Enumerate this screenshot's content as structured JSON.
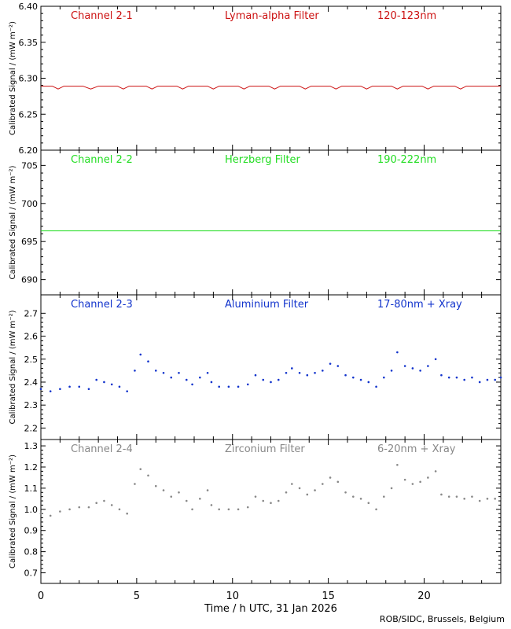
{
  "chart_data": [
    {
      "type": "line",
      "channel_label": "Channel 2-1",
      "filter_label": "Lyman-alpha Filter",
      "band_label": "120-123nm",
      "color": "#cc1111",
      "ylabel": "Calibrated Signal / (mW m⁻²)",
      "ylim": [
        6.2,
        6.4
      ],
      "yticks": [
        6.2,
        6.25,
        6.3,
        6.35,
        6.4
      ],
      "ytick_labels": [
        "6.20",
        "6.25",
        "6.30",
        "6.35",
        "6.40"
      ],
      "series": [
        {
          "x": [
            0,
            0.6,
            0.9,
            1.2,
            2.2,
            2.6,
            3.0,
            4.0,
            4.3,
            4.6,
            5.5,
            5.8,
            6.1,
            7.1,
            7.4,
            7.7,
            8.7,
            9.0,
            9.3,
            10.3,
            10.6,
            10.9,
            11.9,
            12.2,
            12.5,
            13.5,
            13.8,
            14.1,
            15.1,
            15.4,
            15.7,
            16.7,
            17.0,
            17.3,
            18.3,
            18.6,
            18.9,
            19.9,
            20.2,
            20.5,
            21.6,
            21.9,
            22.2,
            23.2,
            23.5,
            24.0
          ],
          "y": [
            6.289,
            6.289,
            6.285,
            6.289,
            6.289,
            6.285,
            6.289,
            6.289,
            6.285,
            6.289,
            6.289,
            6.285,
            6.289,
            6.289,
            6.285,
            6.289,
            6.289,
            6.285,
            6.289,
            6.289,
            6.285,
            6.289,
            6.289,
            6.285,
            6.289,
            6.289,
            6.285,
            6.289,
            6.289,
            6.285,
            6.289,
            6.289,
            6.285,
            6.289,
            6.289,
            6.285,
            6.289,
            6.289,
            6.285,
            6.289,
            6.289,
            6.285,
            6.289,
            6.289,
            6.289,
            6.289
          ]
        }
      ]
    },
    {
      "type": "line",
      "channel_label": "Channel 2-2",
      "filter_label": "Herzberg Filter",
      "band_label": "190-222nm",
      "color": "#22dd22",
      "ylabel": "Calibrated Signal / (mW m⁻²)",
      "ylim": [
        688,
        707
      ],
      "yticks": [
        690,
        695,
        700,
        705
      ],
      "ytick_labels": [
        "690",
        "695",
        "700",
        "705"
      ],
      "series": [
        {
          "x": [
            0,
            24
          ],
          "y": [
            696.4,
            696.4
          ]
        }
      ]
    },
    {
      "type": "scatter",
      "channel_label": "Channel 2-3",
      "filter_label": "Aluminium Filter",
      "band_label": "17-80nm + Xray",
      "color": "#1133cc",
      "ylabel": "Calibrated Signal / (mW m⁻²)",
      "ylim": [
        2.15,
        2.78
      ],
      "yticks": [
        2.2,
        2.3,
        2.4,
        2.5,
        2.6,
        2.7
      ],
      "ytick_labels": [
        "2.2",
        "2.3",
        "2.4",
        "2.5",
        "2.6",
        "2.7"
      ],
      "series": [
        {
          "x": [
            0,
            0.5,
            1.0,
            1.5,
            2.0,
            2.5,
            2.9,
            3.3,
            3.7,
            4.1,
            4.5,
            4.9,
            5.2,
            5.6,
            6.0,
            6.4,
            6.8,
            7.2,
            7.6,
            7.9,
            8.3,
            8.7,
            8.9,
            9.3,
            9.8,
            10.3,
            10.8,
            11.2,
            11.6,
            12.0,
            12.4,
            12.8,
            13.1,
            13.5,
            13.9,
            14.3,
            14.7,
            15.1,
            15.5,
            15.9,
            16.3,
            16.7,
            17.1,
            17.5,
            17.9,
            18.3,
            18.6,
            19.0,
            19.4,
            19.8,
            20.2,
            20.6,
            20.9,
            21.3,
            21.7,
            22.1,
            22.5,
            22.9,
            23.3,
            23.7,
            24.0
          ],
          "y": [
            2.37,
            2.36,
            2.37,
            2.38,
            2.38,
            2.37,
            2.41,
            2.4,
            2.39,
            2.38,
            2.36,
            2.45,
            2.52,
            2.49,
            2.45,
            2.44,
            2.42,
            2.44,
            2.41,
            2.39,
            2.42,
            2.44,
            2.4,
            2.38,
            2.38,
            2.38,
            2.39,
            2.43,
            2.41,
            2.4,
            2.41,
            2.44,
            2.46,
            2.44,
            2.43,
            2.44,
            2.45,
            2.48,
            2.47,
            2.43,
            2.42,
            2.41,
            2.4,
            2.38,
            2.42,
            2.45,
            2.53,
            2.47,
            2.46,
            2.45,
            2.47,
            2.5,
            2.43,
            2.42,
            2.42,
            2.41,
            2.42,
            2.4,
            2.41,
            2.41,
            2.42
          ]
        }
      ]
    },
    {
      "type": "scatter",
      "channel_label": "Channel 2-4",
      "filter_label": "Zirconium Filter",
      "band_label": "6-20nm + Xray",
      "color": "#888888",
      "ylabel": "Calibrated Signal / (mW m⁻²)",
      "ylim": [
        0.65,
        1.33
      ],
      "yticks": [
        0.7,
        0.8,
        0.9,
        1.0,
        1.1,
        1.2,
        1.3
      ],
      "ytick_labels": [
        "0.7",
        "0.8",
        "0.9",
        "1.0",
        "1.1",
        "1.2",
        "1.3"
      ],
      "xlabel": "Time / h UTC, 31 Jan 2026",
      "xlim": [
        0,
        24
      ],
      "xticks": [
        0,
        5,
        10,
        15,
        20
      ],
      "xtick_labels": [
        "0",
        "5",
        "10",
        "15",
        "20"
      ],
      "series": [
        {
          "x": [
            0,
            0.5,
            1.0,
            1.5,
            2.0,
            2.5,
            2.9,
            3.3,
            3.7,
            4.1,
            4.5,
            4.9,
            5.2,
            5.6,
            6.0,
            6.4,
            6.8,
            7.2,
            7.6,
            7.9,
            8.3,
            8.7,
            8.9,
            9.3,
            9.8,
            10.3,
            10.8,
            11.2,
            11.6,
            12.0,
            12.4,
            12.8,
            13.1,
            13.5,
            13.9,
            14.3,
            14.7,
            15.1,
            15.5,
            15.9,
            16.3,
            16.7,
            17.1,
            17.5,
            17.9,
            18.3,
            18.6,
            19.0,
            19.4,
            19.8,
            20.2,
            20.6,
            20.9,
            21.3,
            21.7,
            22.1,
            22.5,
            22.9,
            23.3,
            23.7,
            24.0
          ],
          "y": [
            0.98,
            0.97,
            0.99,
            1.0,
            1.01,
            1.01,
            1.03,
            1.04,
            1.02,
            1.0,
            0.98,
            1.12,
            1.19,
            1.16,
            1.11,
            1.09,
            1.06,
            1.08,
            1.04,
            1.0,
            1.05,
            1.09,
            1.02,
            1.0,
            1.0,
            1.0,
            1.01,
            1.06,
            1.04,
            1.03,
            1.04,
            1.08,
            1.12,
            1.1,
            1.07,
            1.09,
            1.12,
            1.15,
            1.13,
            1.08,
            1.06,
            1.05,
            1.03,
            1.0,
            1.06,
            1.1,
            1.21,
            1.14,
            1.12,
            1.13,
            1.15,
            1.18,
            1.07,
            1.06,
            1.06,
            1.05,
            1.06,
            1.04,
            1.05,
            1.05,
            1.05
          ]
        }
      ]
    }
  ],
  "footer_credit": "ROB/SIDC, Brussels, Belgium"
}
